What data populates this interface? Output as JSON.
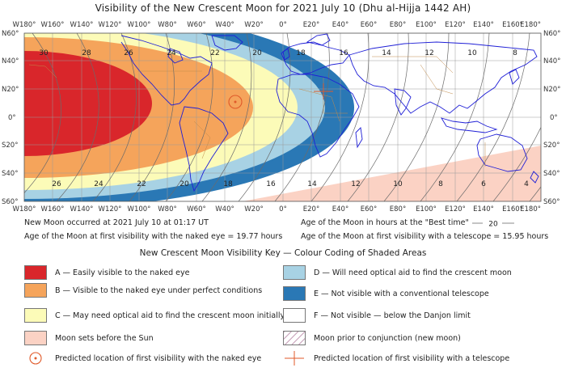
{
  "title": "Visibility of the New Crescent Moon for 2021 July 10 (Dhu al-Hijja 1442 AH)",
  "lon_labels": [
    "W180°",
    "W160°",
    "W140°",
    "W120°",
    "W100°",
    "W80°",
    "W60°",
    "W40°",
    "W20°",
    "0°",
    "E20°",
    "E40°",
    "E60°",
    "E80°",
    "E100°",
    "E120°",
    "E140°",
    "E160°",
    "E180°"
  ],
  "lat_labels_left": [
    "N60°",
    "N40°",
    "N20°",
    "0°",
    "S20°",
    "S40°",
    "S60°"
  ],
  "lat_labels_right": [
    "N60°",
    "N40°",
    "N20°",
    "0°",
    "S20°",
    "S40°",
    "S60°"
  ],
  "hour_labels_top": [
    "30",
    "28",
    "26",
    "24",
    "22",
    "20",
    "18",
    "16",
    "14",
    "12",
    "10",
    "8"
  ],
  "hour_labels_bottom": [
    "26",
    "24",
    "22",
    "20",
    "18",
    "16",
    "14",
    "12",
    "10",
    "8",
    "6",
    "4"
  ],
  "info": {
    "new_moon": "New Moon occurred at 2021 July 10 at 01:17 UT",
    "naked_eye_age": "Age of the Moon at first visibility with the naked eye = 19.77 hours",
    "best_time_label": "Age of the Moon in hours at the \"Best time\"",
    "best_time_value": "20",
    "telescope_age": "Age of the Moon at first visibility with a telescope = 15.95 hours"
  },
  "key": {
    "title": "New Crescent Moon Visibility Key — Colour Coding of Shaded Areas",
    "a": "A — Easily visible to the naked eye",
    "b": "B — Visible to the naked eye under perfect conditions",
    "c": "C — May need optical aid to find the crescent moon initially",
    "sets": "Moon sets before the Sun",
    "naked_loc": "Predicted location of first visibility with the naked eye",
    "d": "D — Will need optical aid to find the crescent moon",
    "e": "E — Not visible with a conventional telescope",
    "f": "F — Not visible — below the Danjon limit",
    "prior": "Moon prior to conjunction (new moon)",
    "tele_loc": "Predicted location of first visibility with a telescope"
  },
  "colors": {
    "zone_a": "#d9262b",
    "zone_b": "#f5a45b",
    "zone_c": "#fcfbb8",
    "zone_d": "#a8d2e4",
    "zone_e": "#2a78b5",
    "zone_f": "#ffffff",
    "moon_sets": "#fbd2c4",
    "coast": "#1f1fd6",
    "border": "#c08a4a",
    "grid": "#999999",
    "hour_lines": "#6b6b6b"
  }
}
